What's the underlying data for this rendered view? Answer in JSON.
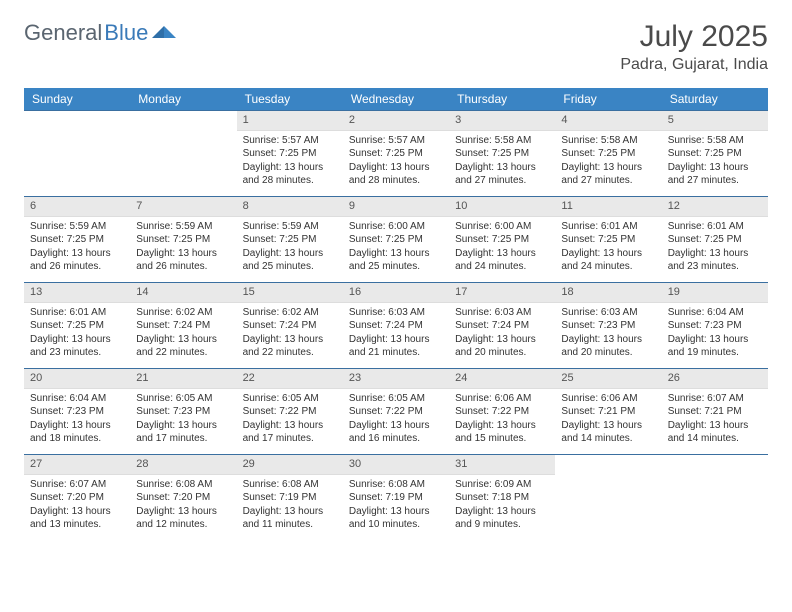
{
  "logo": {
    "part1": "General",
    "part2": "Blue"
  },
  "title": "July 2025",
  "location": "Padra, Gujarat, India",
  "colors": {
    "header_bg": "#3a84c4",
    "header_text": "#ffffff",
    "daynum_bg": "#e9e9e9",
    "row_border": "#3a6fa0",
    "logo_gray": "#5a6570",
    "logo_blue": "#3a7ab8"
  },
  "weekdays": [
    "Sunday",
    "Monday",
    "Tuesday",
    "Wednesday",
    "Thursday",
    "Friday",
    "Saturday"
  ],
  "layout": {
    "first_weekday_index": 2,
    "days_in_month": 31,
    "rows": 5
  },
  "days": {
    "1": {
      "sunrise": "Sunrise: 5:57 AM",
      "sunset": "Sunset: 7:25 PM",
      "daylight": "Daylight: 13 hours and 28 minutes."
    },
    "2": {
      "sunrise": "Sunrise: 5:57 AM",
      "sunset": "Sunset: 7:25 PM",
      "daylight": "Daylight: 13 hours and 28 minutes."
    },
    "3": {
      "sunrise": "Sunrise: 5:58 AM",
      "sunset": "Sunset: 7:25 PM",
      "daylight": "Daylight: 13 hours and 27 minutes."
    },
    "4": {
      "sunrise": "Sunrise: 5:58 AM",
      "sunset": "Sunset: 7:25 PM",
      "daylight": "Daylight: 13 hours and 27 minutes."
    },
    "5": {
      "sunrise": "Sunrise: 5:58 AM",
      "sunset": "Sunset: 7:25 PM",
      "daylight": "Daylight: 13 hours and 27 minutes."
    },
    "6": {
      "sunrise": "Sunrise: 5:59 AM",
      "sunset": "Sunset: 7:25 PM",
      "daylight": "Daylight: 13 hours and 26 minutes."
    },
    "7": {
      "sunrise": "Sunrise: 5:59 AM",
      "sunset": "Sunset: 7:25 PM",
      "daylight": "Daylight: 13 hours and 26 minutes."
    },
    "8": {
      "sunrise": "Sunrise: 5:59 AM",
      "sunset": "Sunset: 7:25 PM",
      "daylight": "Daylight: 13 hours and 25 minutes."
    },
    "9": {
      "sunrise": "Sunrise: 6:00 AM",
      "sunset": "Sunset: 7:25 PM",
      "daylight": "Daylight: 13 hours and 25 minutes."
    },
    "10": {
      "sunrise": "Sunrise: 6:00 AM",
      "sunset": "Sunset: 7:25 PM",
      "daylight": "Daylight: 13 hours and 24 minutes."
    },
    "11": {
      "sunrise": "Sunrise: 6:01 AM",
      "sunset": "Sunset: 7:25 PM",
      "daylight": "Daylight: 13 hours and 24 minutes."
    },
    "12": {
      "sunrise": "Sunrise: 6:01 AM",
      "sunset": "Sunset: 7:25 PM",
      "daylight": "Daylight: 13 hours and 23 minutes."
    },
    "13": {
      "sunrise": "Sunrise: 6:01 AM",
      "sunset": "Sunset: 7:25 PM",
      "daylight": "Daylight: 13 hours and 23 minutes."
    },
    "14": {
      "sunrise": "Sunrise: 6:02 AM",
      "sunset": "Sunset: 7:24 PM",
      "daylight": "Daylight: 13 hours and 22 minutes."
    },
    "15": {
      "sunrise": "Sunrise: 6:02 AM",
      "sunset": "Sunset: 7:24 PM",
      "daylight": "Daylight: 13 hours and 22 minutes."
    },
    "16": {
      "sunrise": "Sunrise: 6:03 AM",
      "sunset": "Sunset: 7:24 PM",
      "daylight": "Daylight: 13 hours and 21 minutes."
    },
    "17": {
      "sunrise": "Sunrise: 6:03 AM",
      "sunset": "Sunset: 7:24 PM",
      "daylight": "Daylight: 13 hours and 20 minutes."
    },
    "18": {
      "sunrise": "Sunrise: 6:03 AM",
      "sunset": "Sunset: 7:23 PM",
      "daylight": "Daylight: 13 hours and 20 minutes."
    },
    "19": {
      "sunrise": "Sunrise: 6:04 AM",
      "sunset": "Sunset: 7:23 PM",
      "daylight": "Daylight: 13 hours and 19 minutes."
    },
    "20": {
      "sunrise": "Sunrise: 6:04 AM",
      "sunset": "Sunset: 7:23 PM",
      "daylight": "Daylight: 13 hours and 18 minutes."
    },
    "21": {
      "sunrise": "Sunrise: 6:05 AM",
      "sunset": "Sunset: 7:23 PM",
      "daylight": "Daylight: 13 hours and 17 minutes."
    },
    "22": {
      "sunrise": "Sunrise: 6:05 AM",
      "sunset": "Sunset: 7:22 PM",
      "daylight": "Daylight: 13 hours and 17 minutes."
    },
    "23": {
      "sunrise": "Sunrise: 6:05 AM",
      "sunset": "Sunset: 7:22 PM",
      "daylight": "Daylight: 13 hours and 16 minutes."
    },
    "24": {
      "sunrise": "Sunrise: 6:06 AM",
      "sunset": "Sunset: 7:22 PM",
      "daylight": "Daylight: 13 hours and 15 minutes."
    },
    "25": {
      "sunrise": "Sunrise: 6:06 AM",
      "sunset": "Sunset: 7:21 PM",
      "daylight": "Daylight: 13 hours and 14 minutes."
    },
    "26": {
      "sunrise": "Sunrise: 6:07 AM",
      "sunset": "Sunset: 7:21 PM",
      "daylight": "Daylight: 13 hours and 14 minutes."
    },
    "27": {
      "sunrise": "Sunrise: 6:07 AM",
      "sunset": "Sunset: 7:20 PM",
      "daylight": "Daylight: 13 hours and 13 minutes."
    },
    "28": {
      "sunrise": "Sunrise: 6:08 AM",
      "sunset": "Sunset: 7:20 PM",
      "daylight": "Daylight: 13 hours and 12 minutes."
    },
    "29": {
      "sunrise": "Sunrise: 6:08 AM",
      "sunset": "Sunset: 7:19 PM",
      "daylight": "Daylight: 13 hours and 11 minutes."
    },
    "30": {
      "sunrise": "Sunrise: 6:08 AM",
      "sunset": "Sunset: 7:19 PM",
      "daylight": "Daylight: 13 hours and 10 minutes."
    },
    "31": {
      "sunrise": "Sunrise: 6:09 AM",
      "sunset": "Sunset: 7:18 PM",
      "daylight": "Daylight: 13 hours and 9 minutes."
    }
  }
}
